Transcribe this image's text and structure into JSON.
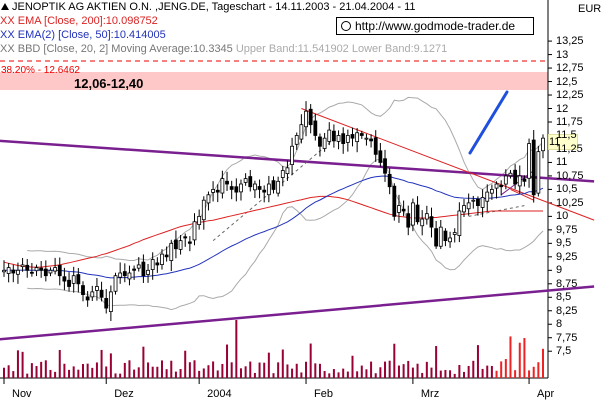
{
  "header": {
    "title": "JENOPTIK AG AKTIEN O.N. ,JENG.DE, Tageschart - 14.11.2003 - 21.04.2004 - 11",
    "legend": [
      {
        "marker": "XX",
        "text": "EMA [Close, 200]:10.098752",
        "color": "#dd2222"
      },
      {
        "marker": "XX",
        "text": "EMA(2) [Close, 50]:10.414005",
        "color": "#2233bb"
      },
      {
        "marker": "XX",
        "text_main": "BBD [Close, 20, 2] Moving Average:10.3345",
        "text_bands": "Upper Band:11.541902 Lower Band:9.1271",
        "color": "#888888"
      }
    ],
    "url": "http://www.godmode-trader.de",
    "currency": "EUR"
  },
  "annotations": {
    "fib_label": "38.20% - 12.6462",
    "zone_label": "12,06-12,40",
    "current_price_label": "11"
  },
  "colors": {
    "up_candle": "#ffffff",
    "down_candle": "#000000",
    "ema200": "#dd2222",
    "ema50": "#2233bb",
    "bands": "#aaaaaa",
    "trendlines": "#7a1f8f",
    "downtrend": "#dd2222",
    "projection": "#1f4fdd",
    "zone_fill": "#ffc8c8",
    "volume": "#990033",
    "volume_highlight": "#ee2222"
  },
  "chart_data": {
    "type": "candlestick",
    "title": "JENOPTIK AG AKTIEN O.N. ,JENG.DE, Tageschart - 14.11.2003 - 21.04.2004 - 11",
    "ylim": [
      7.3,
      13.4
    ],
    "yticks": [
      "13,25",
      "13",
      "12,75",
      "12,5",
      "12,25",
      "12",
      "11,75",
      "11,5",
      "11,25",
      "11",
      "10,75",
      "10,5",
      "10,25",
      "10",
      "9,75",
      "9,5",
      "9,25",
      "9",
      "8,75",
      "8,5",
      "8,25",
      "8",
      "7,75",
      "7,5"
    ],
    "ytick_values": [
      13.25,
      13,
      12.75,
      12.5,
      12.25,
      12,
      11.75,
      11.5,
      11.25,
      11,
      10.75,
      10.5,
      10.25,
      10,
      9.75,
      9.5,
      9.25,
      9,
      8.75,
      8.5,
      8.25,
      8,
      7.75,
      7.5
    ],
    "xticks": [
      {
        "label": "Nov",
        "index": 0
      },
      {
        "label": "Dez",
        "index": 22
      },
      {
        "label": "2004",
        "index": 42
      },
      {
        "label": "Feb",
        "index": 65
      },
      {
        "label": "Mrz",
        "index": 88
      },
      {
        "label": "Apr",
        "index": 113
      }
    ],
    "n_bars": 117,
    "closes": [
      9.0,
      9.05,
      8.95,
      9.0,
      9.1,
      9.0,
      8.95,
      9.05,
      9.0,
      8.9,
      9.0,
      9.05,
      8.9,
      8.8,
      8.7,
      8.9,
      8.75,
      8.55,
      8.45,
      8.6,
      8.7,
      8.5,
      8.3,
      8.6,
      8.9,
      8.95,
      8.9,
      8.95,
      9.0,
      9.1,
      8.9,
      9.0,
      9.2,
      9.1,
      9.3,
      9.25,
      9.5,
      9.4,
      9.55,
      9.6,
      9.5,
      9.9,
      10.0,
      10.3,
      10.4,
      10.5,
      10.45,
      10.7,
      10.6,
      10.5,
      10.45,
      10.6,
      10.7,
      10.55,
      10.6,
      10.5,
      10.45,
      10.6,
      10.5,
      10.65,
      10.85,
      10.9,
      11.3,
      11.5,
      11.7,
      11.95,
      11.7,
      11.5,
      11.3,
      11.45,
      11.6,
      11.4,
      11.5,
      11.35,
      11.5,
      11.45,
      11.55,
      11.5,
      11.45,
      11.4,
      11.15,
      11.0,
      10.8,
      10.55,
      10.0,
      10.2,
      10.1,
      9.8,
      10.25,
      9.9,
      9.95,
      10.05,
      9.8,
      9.45,
      9.8,
      9.55,
      9.6,
      9.7,
      10.1,
      10.2,
      10.25,
      10.3,
      10.2,
      10.35,
      10.45,
      10.5,
      10.6,
      10.55,
      10.75,
      10.8,
      10.6,
      10.75,
      10.65,
      11.35,
      10.4,
      11.2,
      11.45
    ],
    "ema200": [
      9.15,
      9.13,
      9.11,
      9.09,
      9.08,
      9.07,
      9.06,
      9.06,
      9.06,
      9.07,
      9.08,
      9.09,
      9.1,
      9.12,
      9.14,
      9.16,
      9.18,
      9.2,
      9.22,
      9.24,
      9.26,
      9.29,
      9.31,
      9.34,
      9.37,
      9.4,
      9.43,
      9.46,
      9.5,
      9.53,
      9.57,
      9.6,
      9.63,
      9.66,
      9.69,
      9.72,
      9.75,
      9.78,
      9.81,
      9.83,
      9.85,
      9.87,
      9.89,
      9.9,
      9.92,
      9.93,
      9.95,
      9.97,
      9.99,
      10.01,
      10.03,
      10.05,
      10.07,
      10.09,
      10.11,
      10.13,
      10.15,
      10.17,
      10.19,
      10.21,
      10.23,
      10.25,
      10.27,
      10.29,
      10.31,
      10.33,
      10.35,
      10.36,
      10.37,
      10.37,
      10.37,
      10.36,
      10.35,
      10.33,
      10.31,
      10.28,
      10.25,
      10.22,
      10.19,
      10.16,
      10.13,
      10.1,
      10.07,
      10.04,
      10.02,
      10.0,
      9.99,
      9.98,
      9.97,
      9.97,
      9.97,
      9.97,
      9.98,
      9.98,
      9.99,
      10.0,
      10.01,
      10.02,
      10.03,
      10.04,
      10.05,
      10.06,
      10.07,
      10.08,
      10.09,
      10.1,
      10.1,
      10.1,
      10.1,
      10.1,
      10.1,
      10.1,
      10.1,
      10.1,
      10.1,
      10.1,
      10.1
    ]
  }
}
